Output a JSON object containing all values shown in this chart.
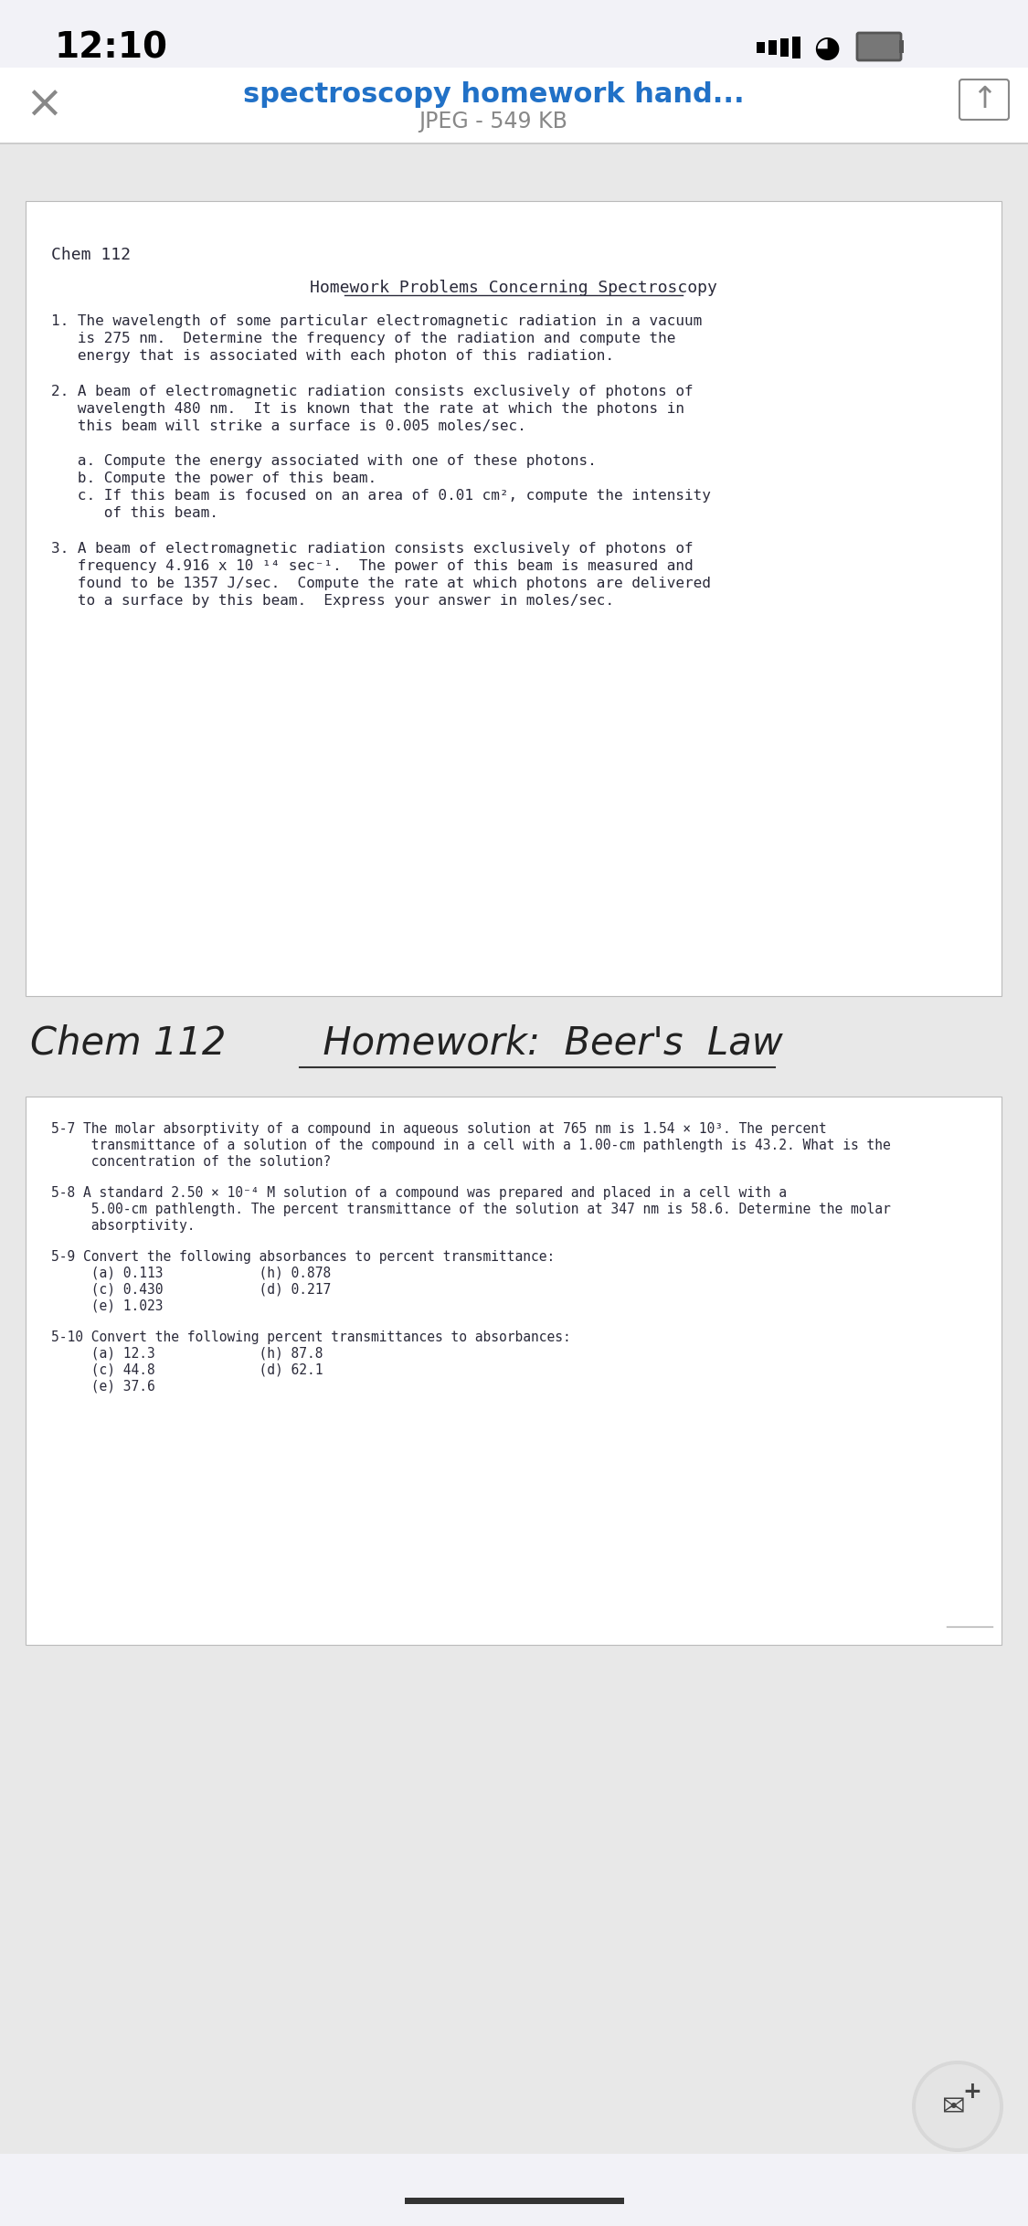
{
  "bg_color": "#f2f2f7",
  "white": "#ffffff",
  "time": "12:10",
  "title_blue": "#2171c7",
  "title_text": "spectroscopy homework hand...",
  "subtitle_text": "JPEG - 549 KB",
  "gray_text": "#888888",
  "doc_text_color": "#2a2a3a",
  "page_bg": "#ffffff",
  "section1_header": "Chem 112",
  "section1_title": "Homework Problems Concerning Spectroscopy",
  "q1_lines": [
    "1. The wavelength of some particular electromagnetic radiation in a vacuum",
    "   is 275 nm.  Determine the frequency of the radiation and compute the",
    "   energy that is associated with each photon of this radiation."
  ],
  "q2_lines": [
    "2. A beam of electromagnetic radiation consists exclusively of photons of",
    "   wavelength 480 nm.  It is known that the rate at which the photons in",
    "   this beam will strike a surface is 0.005 moles/sec.",
    "",
    "   a. Compute the energy associated with one of these photons.",
    "   b. Compute the power of this beam.",
    "   c. If this beam is focused on an area of 0.01 cm², compute the intensity",
    "      of this beam."
  ],
  "q3_lines": [
    "3. A beam of electromagnetic radiation consists exclusively of photons of",
    "   frequency 4.916 x 10 ¹⁴ sec⁻¹.  The power of this beam is measured and",
    "   found to be 1357 J/sec.  Compute the rate at which photons are delivered",
    "   to a surface by this beam.  Express your answer in moles/sec."
  ],
  "handwritten_line": "Chem 112        Homework:  Beer's  Law",
  "s57_lines": [
    "5-7 The molar absorptivity of a compound in aqueous solution at 765 nm is 1.54 × 10³. The percent",
    "     transmittance of a solution of the compound in a cell with a 1.00-cm pathlength is 43.2. What is the",
    "     concentration of the solution?"
  ],
  "s58_lines": [
    "5-8 A standard 2.50 × 10⁻⁴ M solution of a compound was prepared and placed in a cell with a",
    "     5.00-cm pathlength. The percent transmittance of the solution at 347 nm is 58.6. Determine the molar",
    "     absorptivity."
  ],
  "s59_lines": [
    "5-9 Convert the following absorbances to percent transmittance:",
    "     (a) 0.113            (h) 0.878",
    "     (c) 0.430            (d) 0.217",
    "     (e) 1.023"
  ],
  "s510_lines": [
    "5-10 Convert the following percent transmittances to absorbances:",
    "     (a) 12.3             (h) 87.8",
    "     (c) 44.8             (d) 62.1",
    "     (e) 37.6"
  ]
}
